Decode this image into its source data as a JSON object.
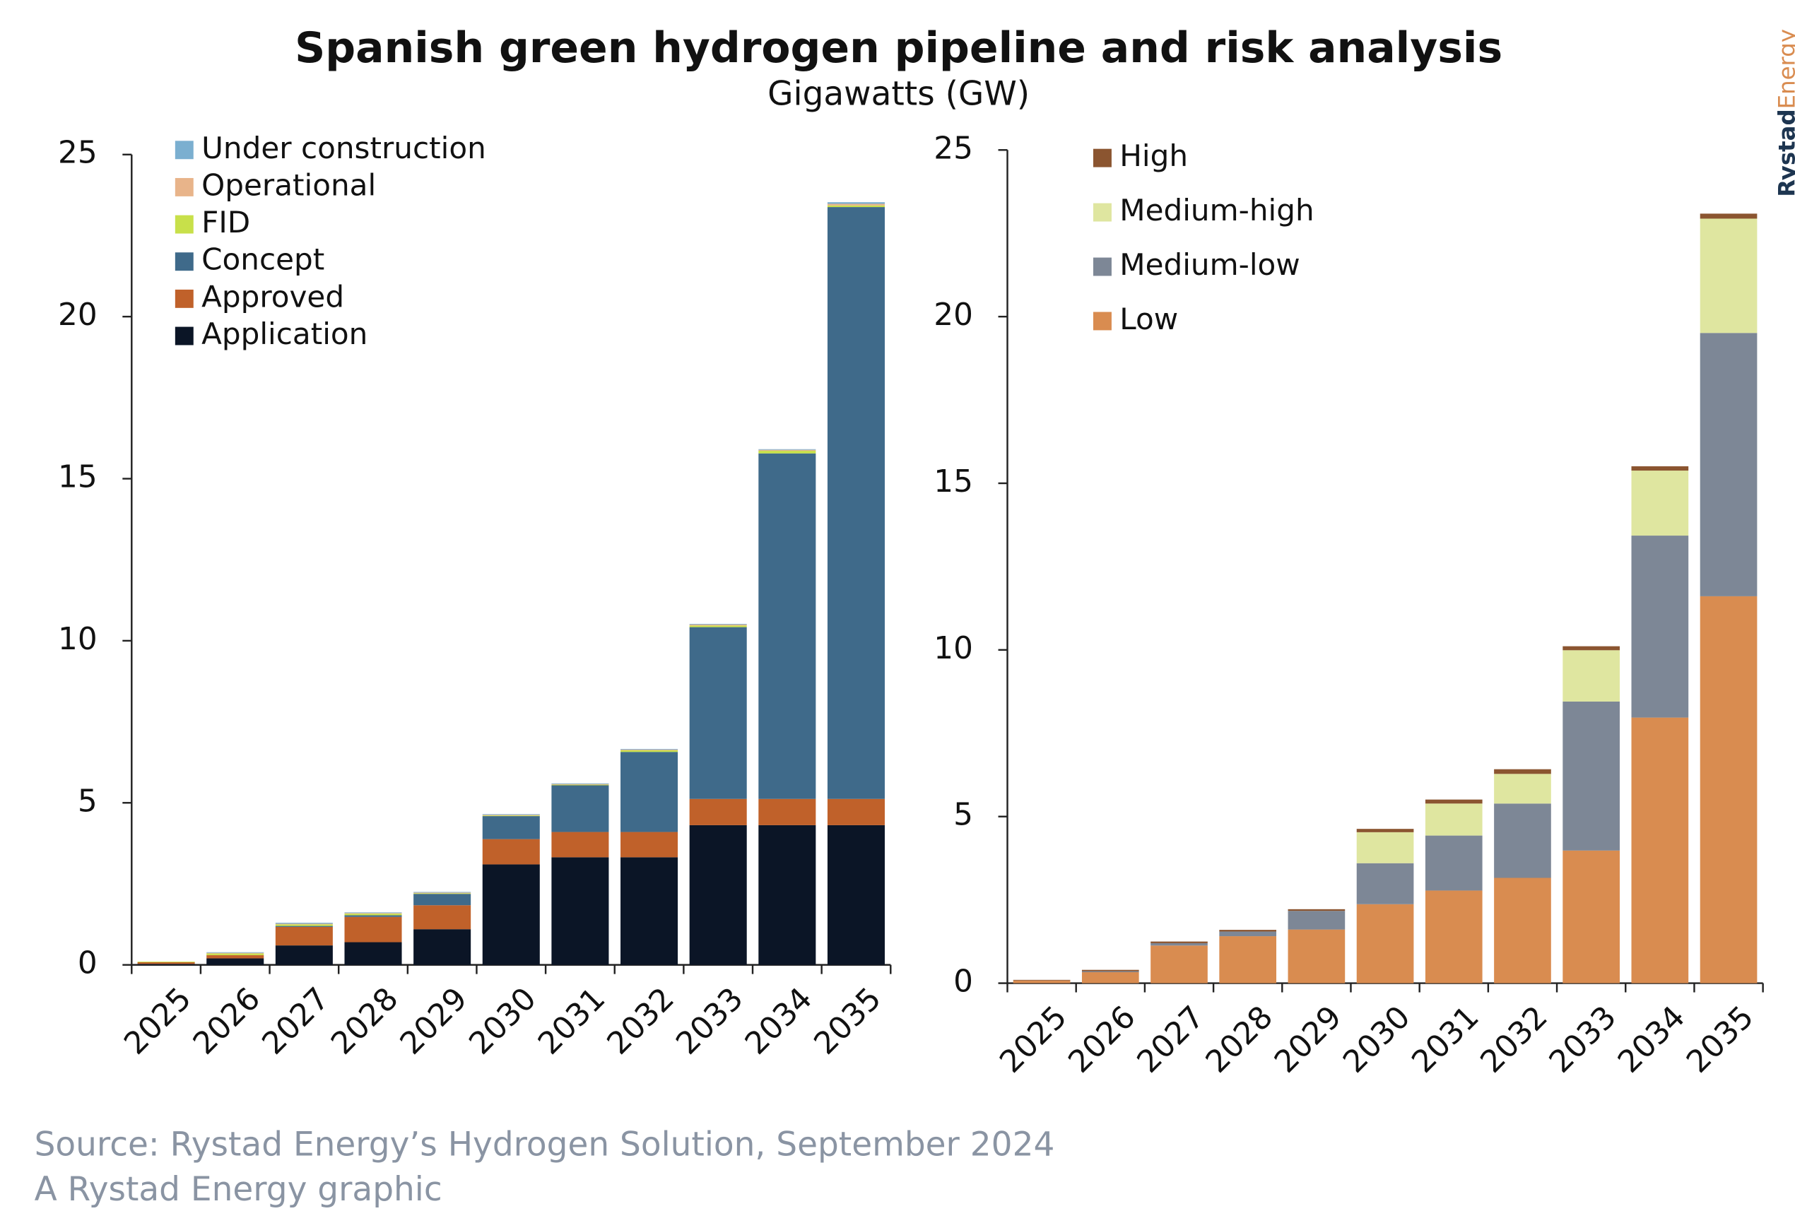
{
  "title": "Spanish green hydrogen pipeline and risk analysis",
  "subtitle": "Gigawatts (GW)",
  "source": "Source: Rystad Energy’s Hydrogen Solution, September 2024",
  "credit": "A Rystad Energy graphic",
  "logo": [
    "Rystad",
    "Energy"
  ],
  "chart_data": [
    {
      "type": "stacked-bar",
      "categories": [
        "2025",
        "2026",
        "2027",
        "2028",
        "2029",
        "2030",
        "2031",
        "2032",
        "2033",
        "2034",
        "2035"
      ],
      "series": [
        {
          "name": "Application",
          "color": "#0b1526",
          "values": [
            0.03,
            0.2,
            0.6,
            0.7,
            1.1,
            3.1,
            3.32,
            3.32,
            4.31,
            4.31,
            4.31
          ]
        },
        {
          "name": "Approved",
          "color": "#c0612a",
          "values": [
            0.05,
            0.1,
            0.57,
            0.78,
            0.74,
            0.78,
            0.78,
            0.78,
            0.81,
            0.81,
            0.81
          ]
        },
        {
          "name": "Concept",
          "color": "#3f6a8a",
          "values": [
            0,
            0,
            0.03,
            0.05,
            0.35,
            0.71,
            1.44,
            2.47,
            5.3,
            10.66,
            18.26
          ]
        },
        {
          "name": "FID",
          "color": "#c8e04a",
          "values": [
            0.02,
            0.05,
            0.05,
            0.05,
            0.02,
            0.02,
            0.02,
            0.05,
            0.05,
            0.08,
            0.05
          ]
        },
        {
          "name": "Operational",
          "color": "#e8b48a",
          "values": [
            0,
            0.02,
            0.02,
            0.02,
            0.02,
            0.02,
            0.02,
            0.02,
            0.03,
            0.03,
            0.05
          ]
        },
        {
          "name": "Under construction",
          "color": "#7bafd0",
          "values": [
            0,
            0.02,
            0.03,
            0.02,
            0.02,
            0.02,
            0.02,
            0.02,
            0.02,
            0.02,
            0.05
          ]
        }
      ],
      "ylim": [
        0,
        25
      ],
      "yticks": [
        0,
        5,
        10,
        15,
        20,
        25
      ],
      "legend": "upper left"
    },
    {
      "type": "stacked-bar",
      "categories": [
        "2025",
        "2026",
        "2027",
        "2028",
        "2029",
        "2030",
        "2031",
        "2032",
        "2033",
        "2034",
        "2035"
      ],
      "series": [
        {
          "name": "Low",
          "color": "#d98c50",
          "values": [
            0.08,
            0.33,
            1.13,
            1.41,
            1.61,
            2.37,
            2.78,
            3.16,
            3.98,
            7.97,
            11.61
          ]
        },
        {
          "name": "Medium-low",
          "color": "#7d8796",
          "values": [
            0,
            0.03,
            0.07,
            0.14,
            0.56,
            1.23,
            1.65,
            2.23,
            4.47,
            5.46,
            7.9
          ]
        },
        {
          "name": "Medium-high",
          "color": "#dfe6a0",
          "values": [
            0,
            0,
            0,
            0,
            0,
            0.93,
            0.96,
            0.89,
            1.54,
            1.95,
            3.43
          ]
        },
        {
          "name": "High",
          "color": "#8b5530",
          "values": [
            0.02,
            0.04,
            0.05,
            0.05,
            0.05,
            0.1,
            0.12,
            0.14,
            0.12,
            0.13,
            0.15
          ]
        }
      ],
      "ylim": [
        0,
        25
      ],
      "yticks": [
        0,
        5,
        10,
        15,
        20,
        25
      ],
      "legend": "upper left"
    }
  ]
}
